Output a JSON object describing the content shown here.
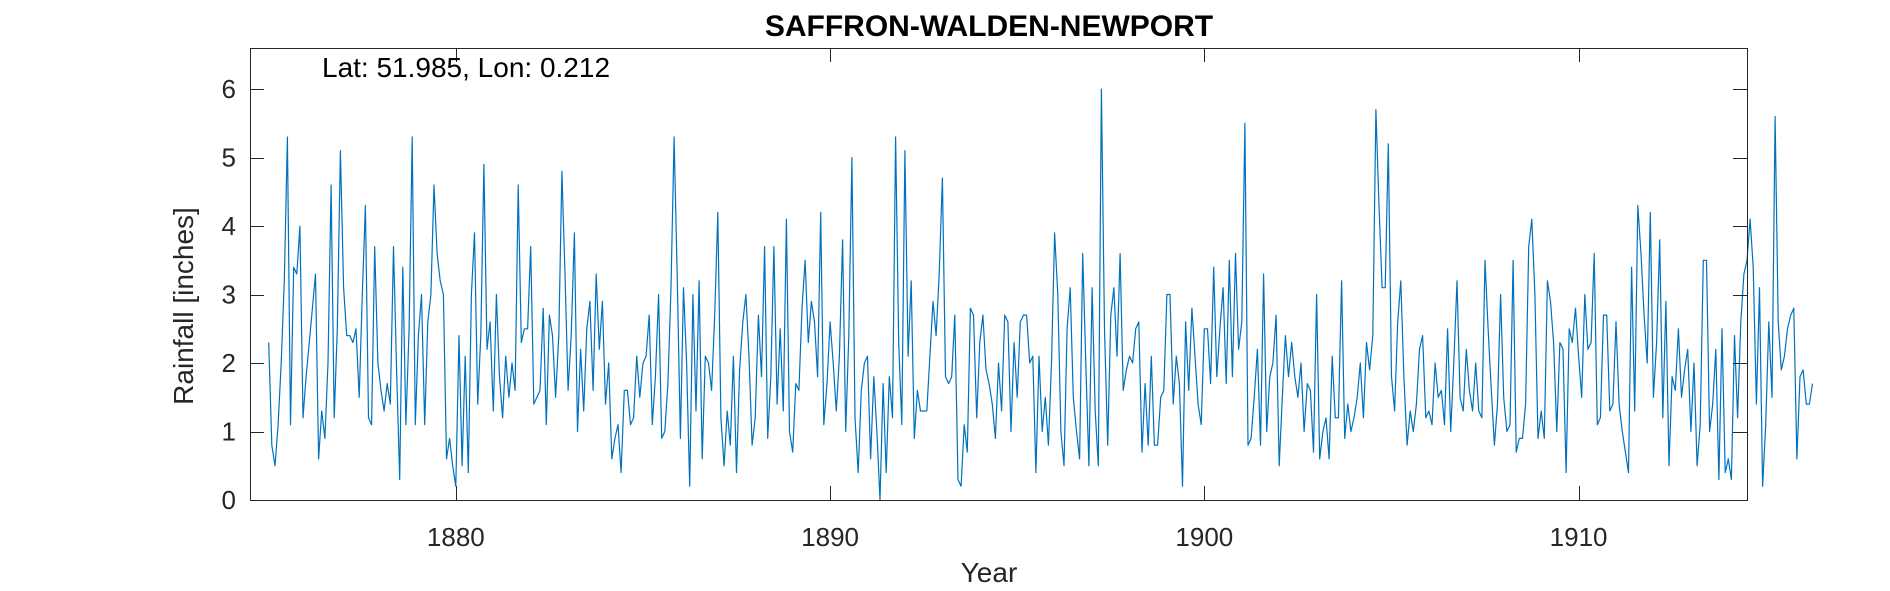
{
  "colors": {
    "series": "#0072BD",
    "axis": "#262626",
    "background": "#ffffff"
  },
  "chart_data": {
    "type": "line",
    "title": "SAFFRON-WALDEN-NEWPORT",
    "annotation": "Lat: 51.985, Lon: 0.212",
    "xlabel": "Year",
    "ylabel": "Rainfall [inches]",
    "xlim": [
      1874.5,
      1914.5
    ],
    "ylim": [
      0,
      6.6
    ],
    "xticks": [
      1880,
      1890,
      1900,
      1910
    ],
    "yticks": [
      0,
      1,
      2,
      3,
      4,
      5,
      6
    ],
    "grid": false,
    "box": true,
    "x_start": 1875.0,
    "x_step_months": 1,
    "series": [
      {
        "values": [
          2.3,
          0.8,
          0.5,
          1.1,
          2.0,
          3.2,
          5.3,
          1.1,
          3.4,
          3.3,
          4.0,
          1.2,
          1.8,
          2.3,
          2.8,
          3.3,
          0.6,
          1.3,
          0.9,
          2.0,
          4.6,
          1.2,
          2.5,
          5.1,
          3.1,
          2.4,
          2.4,
          2.3,
          2.5,
          1.5,
          3.0,
          4.3,
          1.2,
          1.1,
          3.7,
          2.0,
          1.6,
          1.3,
          1.7,
          1.4,
          3.7,
          1.9,
          0.3,
          3.4,
          1.1,
          2.5,
          5.3,
          1.1,
          2.4,
          3.0,
          1.1,
          2.6,
          3.0,
          4.6,
          3.6,
          3.2,
          3.0,
          0.6,
          0.9,
          0.5,
          0.2,
          2.4,
          0.5,
          2.1,
          0.4,
          3.0,
          3.9,
          1.4,
          2.4,
          4.9,
          2.2,
          2.6,
          1.3,
          3.0,
          1.8,
          1.2,
          2.1,
          1.5,
          2.0,
          1.6,
          4.6,
          2.3,
          2.5,
          2.5,
          3.7,
          1.4,
          1.5,
          1.6,
          2.8,
          1.1,
          2.7,
          2.4,
          1.5,
          2.4,
          4.8,
          3.3,
          1.6,
          2.4,
          3.9,
          1.0,
          2.2,
          1.3,
          2.5,
          2.9,
          1.6,
          3.3,
          2.2,
          2.9,
          1.4,
          2.0,
          0.6,
          0.9,
          1.1,
          0.4,
          1.6,
          1.6,
          1.1,
          1.2,
          2.1,
          1.5,
          2.0,
          2.1,
          2.7,
          1.1,
          1.8,
          3.0,
          0.9,
          1.0,
          1.7,
          3.1,
          5.3,
          3.2,
          0.9,
          3.1,
          2.0,
          0.2,
          3.0,
          1.3,
          3.2,
          0.6,
          2.1,
          2.0,
          1.6,
          2.7,
          4.2,
          1.2,
          0.5,
          1.3,
          0.8,
          2.1,
          0.4,
          1.9,
          2.6,
          3.0,
          2.1,
          0.8,
          1.2,
          2.7,
          1.8,
          3.7,
          0.9,
          1.8,
          3.7,
          1.4,
          2.5,
          1.3,
          4.1,
          1.0,
          0.7,
          1.7,
          1.6,
          2.8,
          3.5,
          2.3,
          2.9,
          2.6,
          1.8,
          4.2,
          1.1,
          1.7,
          2.6,
          2.0,
          1.3,
          2.1,
          3.8,
          1.0,
          2.4,
          5.0,
          1.2,
          0.4,
          1.6,
          2.0,
          2.1,
          0.6,
          1.8,
          1.0,
          0.0,
          1.7,
          0.4,
          1.8,
          1.2,
          5.3,
          2.3,
          1.1,
          5.1,
          2.1,
          3.2,
          0.9,
          1.6,
          1.3,
          1.3,
          1.3,
          2.1,
          2.9,
          2.4,
          3.3,
          4.7,
          1.8,
          1.7,
          1.8,
          2.7,
          0.3,
          0.2,
          1.1,
          0.7,
          2.8,
          2.7,
          1.2,
          2.3,
          2.7,
          1.9,
          1.7,
          1.4,
          0.9,
          2.0,
          1.3,
          2.7,
          2.6,
          1.0,
          2.3,
          1.5,
          2.6,
          2.7,
          2.7,
          2.0,
          2.1,
          0.4,
          2.1,
          1.0,
          1.5,
          0.8,
          2.0,
          3.9,
          3.0,
          1.0,
          0.5,
          2.5,
          3.1,
          1.5,
          1.0,
          0.6,
          3.6,
          2.0,
          0.5,
          3.1,
          1.3,
          0.5,
          6.0,
          2.5,
          0.8,
          2.7,
          3.1,
          2.1,
          3.6,
          1.6,
          1.9,
          2.1,
          2.0,
          2.5,
          2.6,
          0.7,
          1.7,
          0.8,
          2.1,
          0.8,
          0.8,
          1.5,
          1.6,
          3.0,
          3.0,
          1.4,
          2.1,
          1.7,
          0.2,
          2.6,
          1.6,
          2.8,
          2.1,
          1.4,
          1.1,
          2.5,
          2.5,
          1.7,
          3.4,
          1.8,
          2.5,
          3.1,
          1.7,
          3.5,
          1.8,
          3.6,
          2.2,
          2.6,
          5.5,
          0.8,
          0.9,
          1.5,
          2.2,
          0.8,
          3.3,
          1.0,
          1.8,
          2.0,
          2.7,
          0.5,
          1.5,
          2.4,
          1.8,
          2.3,
          1.8,
          1.5,
          2.0,
          1.0,
          1.7,
          1.6,
          0.7,
          3.0,
          0.6,
          1.0,
          1.2,
          0.6,
          2.1,
          1.2,
          1.2,
          3.2,
          0.9,
          1.4,
          1.0,
          1.2,
          1.5,
          2.0,
          1.2,
          2.3,
          1.9,
          2.4,
          5.7,
          4.3,
          3.1,
          3.1,
          5.2,
          1.8,
          1.3,
          2.6,
          3.2,
          1.8,
          0.8,
          1.3,
          1.0,
          1.4,
          2.2,
          2.4,
          1.2,
          1.3,
          1.1,
          2.0,
          1.5,
          1.6,
          1.1,
          2.5,
          1.0,
          2.0,
          3.2,
          1.5,
          1.3,
          2.2,
          1.6,
          1.3,
          2.0,
          1.3,
          1.2,
          3.5,
          2.5,
          1.6,
          0.8,
          1.4,
          3.0,
          1.5,
          1.0,
          1.1,
          3.5,
          0.7,
          0.9,
          0.9,
          1.4,
          3.7,
          4.1,
          3.0,
          0.9,
          1.3,
          0.9,
          3.2,
          2.9,
          2.3,
          1.0,
          2.3,
          2.2,
          0.4,
          2.5,
          2.3,
          2.8,
          2.1,
          1.5,
          3.0,
          2.2,
          2.3,
          3.6,
          1.1,
          1.2,
          2.7,
          2.7,
          1.3,
          1.4,
          2.6,
          1.4,
          1.0,
          0.7,
          0.4,
          3.4,
          1.3,
          4.3,
          3.6,
          2.7,
          2.0,
          4.2,
          1.5,
          2.3,
          3.8,
          1.2,
          2.9,
          0.5,
          1.8,
          1.6,
          2.5,
          1.5,
          1.9,
          2.2,
          1.0,
          2.0,
          0.5,
          1.1,
          3.5,
          3.5,
          1.0,
          1.4,
          2.2,
          0.3,
          2.5,
          0.4,
          0.6,
          0.3,
          2.4,
          1.2,
          2.6,
          3.3,
          3.5,
          4.1,
          3.4,
          1.4,
          3.1,
          0.2,
          1.1,
          2.6,
          1.5,
          5.6,
          2.6,
          1.9,
          2.1,
          2.5,
          2.7,
          2.8,
          0.6,
          1.8,
          1.9,
          1.4,
          1.4,
          1.7
        ]
      }
    ]
  }
}
